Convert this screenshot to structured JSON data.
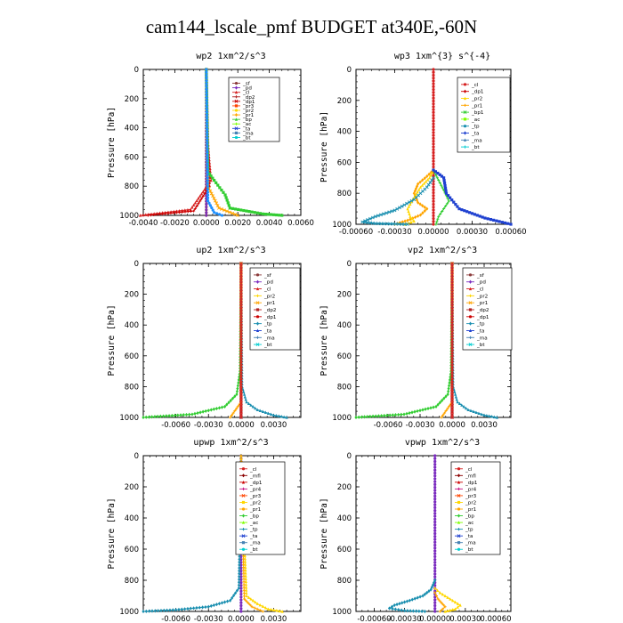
{
  "title": "cam144_lscale_pmf  BUDGET at340E,-60N",
  "chart_data": [
    {
      "type": "line",
      "title": "wp2   1xm^2/s^3",
      "ylabel": "Pressure [hPa]",
      "xlim": [
        -0.004,
        0.006
      ],
      "ylim": [
        1000,
        0
      ],
      "xticks": [
        -0.004,
        -0.002,
        0.0,
        0.002,
        0.004,
        0.006
      ],
      "xtick_labels": [
        "-0.0040",
        "-0.0020",
        "0.0000",
        "0.0020",
        "0.0040",
        "0.0060"
      ],
      "yticks": [
        0,
        200,
        400,
        600,
        800,
        1000
      ],
      "legend": [
        "_sf",
        "_pd",
        "_cl",
        "_dp2",
        "_dp1",
        "_pr3",
        "_pr2",
        "_pr1",
        "_bp",
        "_ac",
        "_ta",
        "_ma",
        "_bt"
      ],
      "series": [
        {
          "name": "_sf",
          "color": "#8b3a3a",
          "x": [
            0,
            0,
            0
          ],
          "y": [
            0,
            500,
            1000
          ]
        },
        {
          "name": "_pd",
          "color": "#7b2cbf",
          "x": [
            0,
            0,
            0
          ],
          "y": [
            0,
            500,
            1000
          ]
        },
        {
          "name": "_cl",
          "color": "#d62020",
          "x": [
            0,
            0.0001,
            0.0003,
            -0.001,
            -0.0042
          ],
          "y": [
            0,
            500,
            760,
            960,
            1000
          ]
        },
        {
          "name": "_dp1",
          "color": "#cc0000",
          "x": [
            0,
            0.0001,
            0.0002,
            -0.0008,
            -0.0037
          ],
          "y": [
            0,
            500,
            800,
            970,
            1000
          ]
        },
        {
          "name": "_pr1",
          "color": "#ffa500",
          "x": [
            0,
            0.0001,
            0.0008,
            0.002
          ],
          "y": [
            0,
            800,
            950,
            1000
          ]
        },
        {
          "name": "_bp",
          "color": "#32cd32",
          "x": [
            0,
            0.0001,
            0.0005,
            0.0012,
            0.0015,
            0.0036,
            0.0048
          ],
          "y": [
            0,
            700,
            760,
            860,
            950,
            990,
            1000
          ]
        },
        {
          "name": "_ac",
          "color": "#1e90ff",
          "x": [
            0,
            0.0001,
            0.0005,
            0.001
          ],
          "y": [
            0,
            900,
            980,
            1000
          ]
        }
      ]
    },
    {
      "type": "line",
      "title": "wp3   1xm^{3} s^{-4}",
      "ylabel": "Pressure [hPa]",
      "xlim": [
        -0.0006,
        0.0006
      ],
      "ylim": [
        1000,
        0
      ],
      "xticks": [
        -0.0006,
        -0.0003,
        0.0,
        0.0003,
        0.0006
      ],
      "xtick_labels": [
        "-0.00060",
        "-0.00030",
        "0.00000",
        "0.00030",
        "0.00060"
      ],
      "yticks": [
        0,
        200,
        400,
        600,
        800,
        1000
      ],
      "legend": [
        "_cl",
        "_dp1",
        "_pr2",
        "_pr1",
        "_bp1",
        "_ac",
        "_tp",
        "_ta",
        "_ma",
        "_bt"
      ],
      "series": [
        {
          "name": "_cl",
          "color": "#d62020",
          "x": [
            0,
            0,
            0
          ],
          "y": [
            0,
            500,
            1000
          ]
        },
        {
          "name": "_pr1",
          "color": "#ffa500",
          "x": [
            0,
            -5e-05,
            -0.00012,
            -0.00015,
            -0.00012,
            -5e-05,
            -0.0001,
            -0.0002,
            -0.0003
          ],
          "y": [
            650,
            690,
            740,
            800,
            860,
            900,
            940,
            975,
            1000
          ]
        },
        {
          "name": "_pr2",
          "color": "#ffd700",
          "x": [
            0,
            -3e-05,
            -0.0001,
            -0.00016,
            -0.0002,
            -0.00018,
            -0.00015,
            -0.00022
          ],
          "y": [
            650,
            700,
            760,
            840,
            900,
            950,
            980,
            1000
          ]
        },
        {
          "name": "_bp1",
          "color": "#32cd32",
          "x": [
            0,
            3e-05,
            8e-05,
            0.00012,
            8e-05,
            4e-05,
            2e-05
          ],
          "y": [
            650,
            700,
            780,
            850,
            900,
            950,
            1000
          ]
        },
        {
          "name": "_tp",
          "color": "#1a8fb0",
          "x": [
            0,
            -5e-05,
            -0.00015,
            -0.0003,
            -0.00045,
            -0.00055,
            -0.00045,
            -0.0002
          ],
          "y": [
            700,
            760,
            840,
            910,
            950,
            985,
            995,
            1000
          ]
        },
        {
          "name": "_ta",
          "color": "#1e40d0",
          "x": [
            0,
            5e-05,
            8e-05,
            0.0001,
            0.0002,
            0.0004,
            0.0006
          ],
          "y": [
            650,
            680,
            700,
            800,
            900,
            960,
            1000
          ]
        }
      ]
    },
    {
      "type": "line",
      "title": "up2   1xm^2/s^3",
      "ylabel": "Pressure [hPa]",
      "xlim": [
        -0.009,
        0.0055
      ],
      "ylim": [
        1000,
        0
      ],
      "xticks": [
        -0.006,
        -0.003,
        0.0,
        0.003
      ],
      "xtick_labels": [
        "-0.0060",
        "-0.0030",
        "0.0000",
        "0.0030"
      ],
      "yticks": [
        0,
        200,
        400,
        600,
        800,
        1000
      ],
      "legend": [
        "_sf",
        "_pd",
        "_cl",
        "_pr2",
        "_pr1",
        "_dp2",
        "_dp1",
        "_tp",
        "_ta",
        "_ma",
        "_bt"
      ],
      "series": [
        {
          "name": "_sf",
          "color": "#8b3a3a",
          "x": [
            0,
            0,
            0
          ],
          "y": [
            0,
            500,
            1000
          ]
        },
        {
          "name": "_dp1",
          "color": "#32cd32",
          "x": [
            0,
            -0.0001,
            -0.0004,
            -0.0015,
            -0.0045,
            -0.009
          ],
          "y": [
            0,
            700,
            850,
            930,
            980,
            1000
          ]
        },
        {
          "name": "_tp",
          "color": "#1a8fb0",
          "x": [
            0,
            0.0001,
            0.0005,
            0.0015,
            0.003,
            0.0042
          ],
          "y": [
            0,
            800,
            900,
            950,
            985,
            1000
          ]
        },
        {
          "name": "_pr1",
          "color": "#ffa500",
          "x": [
            0,
            0,
            -0.001
          ],
          "y": [
            0,
            900,
            1000
          ]
        },
        {
          "name": "_cl",
          "color": "#d62020",
          "x": [
            0,
            0,
            0
          ],
          "y": [
            0,
            500,
            1000
          ]
        }
      ]
    },
    {
      "type": "line",
      "title": "vp2   1xm^2/s^3",
      "ylabel": "Pressure [hPa]",
      "xlim": [
        -0.009,
        0.0055
      ],
      "ylim": [
        1000,
        0
      ],
      "xticks": [
        -0.006,
        -0.003,
        0.0,
        0.003
      ],
      "xtick_labels": [
        "-0.0060",
        "-0.0030",
        "0.0000",
        "0.0030"
      ],
      "yticks": [
        0,
        200,
        400,
        600,
        800,
        1000
      ],
      "legend": [
        "_sf",
        "_pd",
        "_cl",
        "_pr2",
        "_pr1",
        "_dp2",
        "_dp1",
        "_tp",
        "_ta",
        "_ma",
        "_bt"
      ],
      "series": [
        {
          "name": "_sf",
          "color": "#8b3a3a",
          "x": [
            0,
            0,
            0
          ],
          "y": [
            0,
            500,
            1000
          ]
        },
        {
          "name": "_dp1",
          "color": "#32cd32",
          "x": [
            0,
            -0.0001,
            -0.0004,
            -0.0015,
            -0.0045,
            -0.009
          ],
          "y": [
            0,
            700,
            850,
            930,
            980,
            1000
          ]
        },
        {
          "name": "_tp",
          "color": "#1a8fb0",
          "x": [
            0,
            0.0001,
            0.0005,
            0.0015,
            0.003,
            0.0042
          ],
          "y": [
            0,
            800,
            900,
            950,
            985,
            1000
          ]
        },
        {
          "name": "_pr1",
          "color": "#ffa500",
          "x": [
            0,
            0,
            -0.001
          ],
          "y": [
            0,
            900,
            1000
          ]
        },
        {
          "name": "_cl",
          "color": "#d62020",
          "x": [
            0,
            0,
            0
          ],
          "y": [
            0,
            500,
            1000
          ]
        }
      ]
    },
    {
      "type": "line",
      "title": "upwp   1xm^2/s^3",
      "ylabel": "Pressure [hPa]",
      "xlim": [
        -0.009,
        0.0055
      ],
      "ylim": [
        1000,
        0
      ],
      "xticks": [
        -0.006,
        -0.003,
        0.0,
        0.003
      ],
      "xtick_labels": [
        "-0.0060",
        "-0.0030",
        "0.0000",
        "0.0030"
      ],
      "yticks": [
        0,
        200,
        400,
        600,
        800,
        1000
      ],
      "legend": [
        "_cl",
        "_mfl",
        "_dp1",
        "_pr4",
        "_pr3",
        "_pr2",
        "_pr1",
        "_bp",
        "_ac",
        "_tp",
        "_ta",
        "_ma",
        "_bt"
      ],
      "series": [
        {
          "name": "_cl",
          "color": "#7b2cbf",
          "x": [
            0,
            0,
            0
          ],
          "y": [
            0,
            500,
            1000
          ]
        },
        {
          "name": "_tp",
          "color": "#1a8fb0",
          "x": [
            0,
            -0.0002,
            -0.001,
            -0.003,
            -0.006,
            -0.009
          ],
          "y": [
            0,
            850,
            930,
            970,
            990,
            1000
          ]
        },
        {
          "name": "_pr2",
          "color": "#ffd700",
          "x": [
            0,
            0.0005,
            0.0015,
            0.0025,
            0.0038
          ],
          "y": [
            0,
            900,
            950,
            985,
            1000
          ]
        },
        {
          "name": "_pr1",
          "color": "#ffa500",
          "x": [
            0,
            0.0003,
            0.001,
            0.002
          ],
          "y": [
            0,
            920,
            970,
            1000
          ]
        }
      ]
    },
    {
      "type": "line",
      "title": "vpwp   1xm^2/s^3",
      "ylabel": "Pressure [hPa]",
      "xlim": [
        -0.00078,
        0.00075
      ],
      "ylim": [
        1000,
        0
      ],
      "xticks": [
        -0.0006,
        -0.0003,
        0.0,
        0.0003,
        0.0006
      ],
      "xtick_labels": [
        "-0.00060",
        "-0.00030",
        "0.00000",
        "0.00030",
        "0.00060"
      ],
      "yticks": [
        0,
        200,
        400,
        600,
        800,
        1000
      ],
      "legend": [
        "_cl",
        "_mfl",
        "_dp1",
        "_pr4",
        "_pr3",
        "_pr2",
        "_pr1",
        "_bp",
        "_ac",
        "_tp",
        "_ta",
        "_ma",
        "_bt"
      ],
      "series": [
        {
          "name": "_cl",
          "color": "#7b2cbf",
          "x": [
            0,
            0,
            0
          ],
          "y": [
            0,
            500,
            1000
          ]
        },
        {
          "name": "_tp",
          "color": "#1a8fb0",
          "x": [
            0,
            -4e-05,
            -0.00012,
            -0.00025,
            -0.0004,
            -0.00045,
            -0.0003,
            -0.0001
          ],
          "y": [
            800,
            860,
            900,
            930,
            960,
            980,
            995,
            1000
          ]
        },
        {
          "name": "_pr2",
          "color": "#ffd700",
          "x": [
            0,
            5e-05,
            0.00015,
            0.00025,
            0.0002,
            0.0001
          ],
          "y": [
            850,
            880,
            920,
            960,
            985,
            1000
          ]
        },
        {
          "name": "_pr1",
          "color": "#ffa500",
          "x": [
            0,
            3e-05,
            0.0001,
            5e-05
          ],
          "y": [
            880,
            920,
            970,
            1000
          ]
        }
      ]
    }
  ]
}
